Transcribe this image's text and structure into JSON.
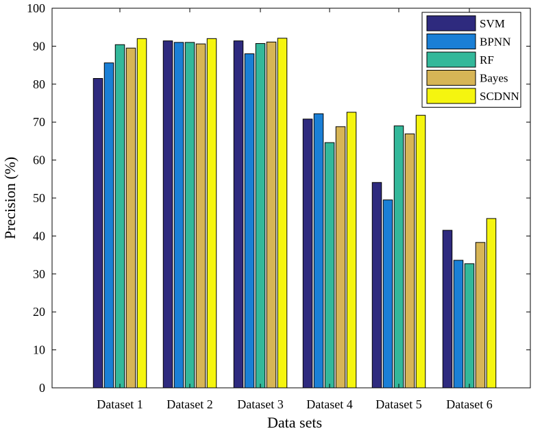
{
  "chart_data": {
    "type": "bar",
    "title": "",
    "xlabel": "Data sets",
    "ylabel": "Precision (%)",
    "ylim": [
      0,
      100
    ],
    "yticks": [
      0,
      10,
      20,
      30,
      40,
      50,
      60,
      70,
      80,
      90,
      100
    ],
    "categories": [
      "Dataset 1",
      "Dataset 2",
      "Dataset 3",
      "Dataset 4",
      "Dataset 5",
      "Dataset 6"
    ],
    "series": [
      {
        "name": "SVM",
        "color": "#2e2a7e",
        "values": [
          81.5,
          91.4,
          91.4,
          70.8,
          54.1,
          41.5
        ]
      },
      {
        "name": "BPNN",
        "color": "#1a7fd6",
        "values": [
          85.6,
          91.0,
          88.0,
          72.2,
          49.5,
          33.6
        ]
      },
      {
        "name": "RF",
        "color": "#33b89a",
        "values": [
          90.4,
          91.0,
          90.7,
          64.6,
          69.0,
          32.7
        ]
      },
      {
        "name": "Bayes",
        "color": "#d7b556",
        "values": [
          89.5,
          90.6,
          91.1,
          68.8,
          66.9,
          38.3
        ]
      },
      {
        "name": "SCDNN",
        "color": "#f5f50f",
        "values": [
          92.0,
          92.0,
          92.1,
          72.6,
          71.8,
          44.6
        ]
      }
    ],
    "legend_position": "top-right",
    "grid": false
  }
}
